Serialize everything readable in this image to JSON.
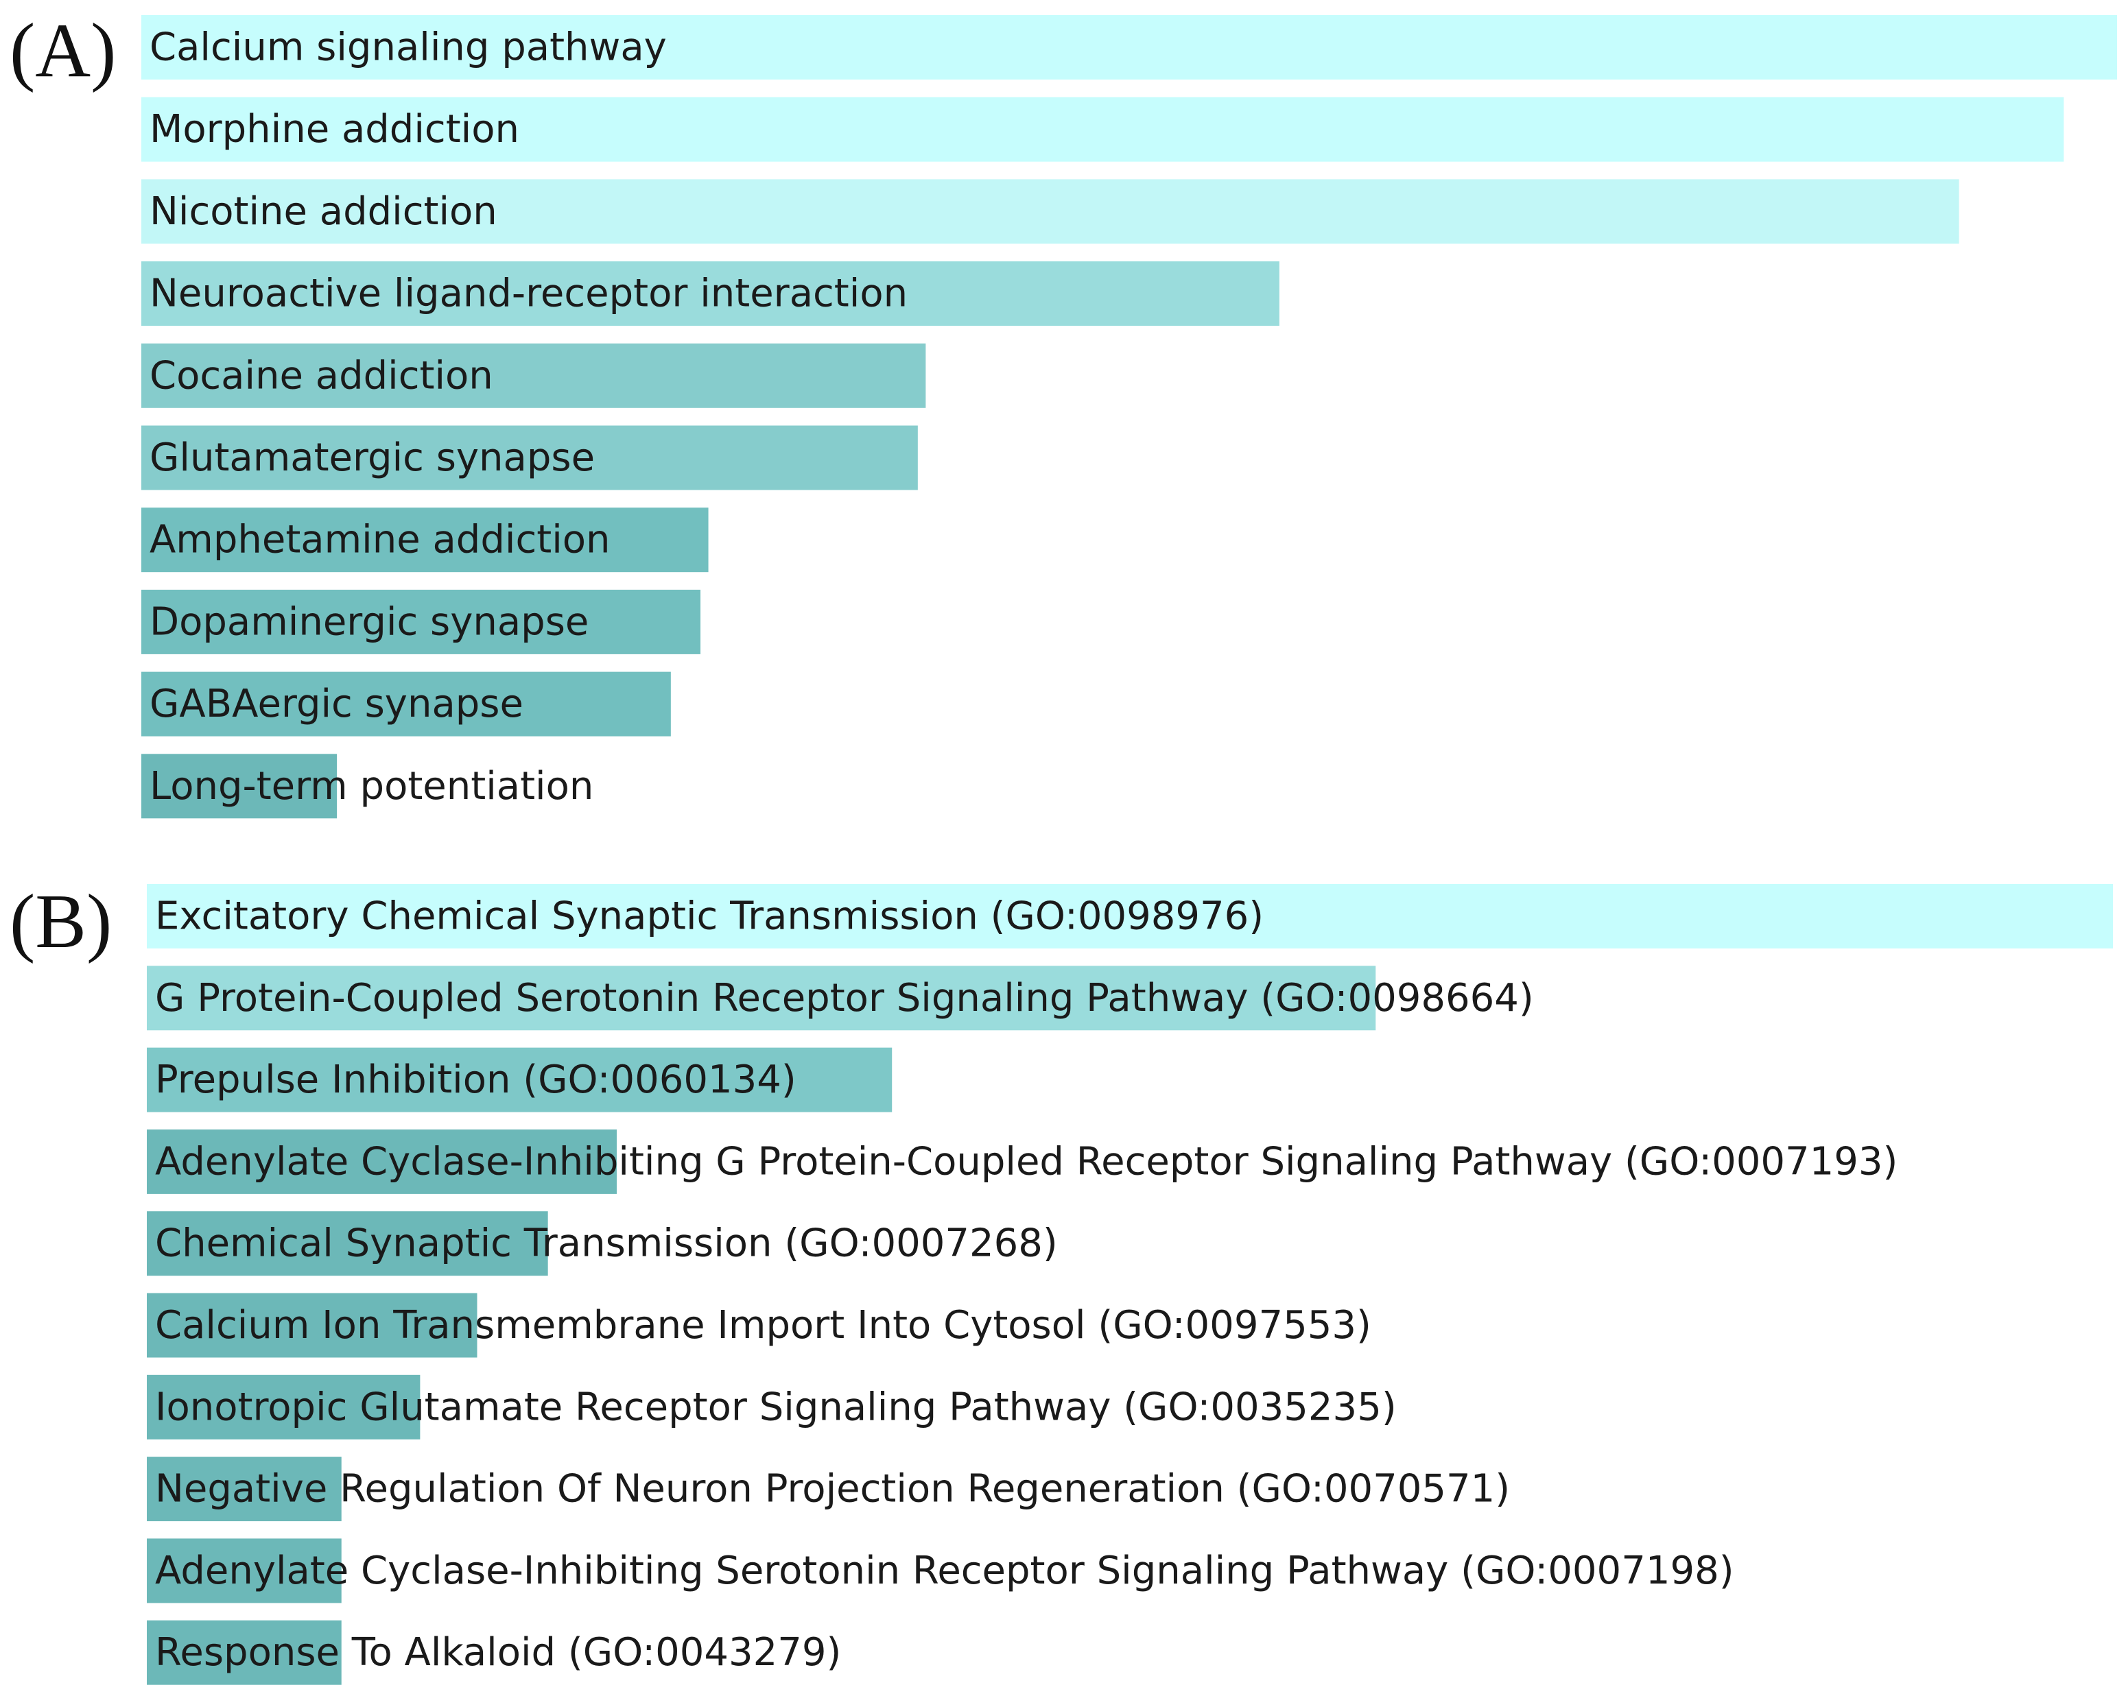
{
  "chart_data": [
    {
      "type": "bar",
      "orientation": "horizontal",
      "panel_label": "(A)",
      "categories": [
        "Calcium signaling pathway",
        "Morphine addiction",
        "Nicotine addiction",
        "Neuroactive ligand-receptor interaction",
        "Cocaine addiction",
        "Glutamatergic synapse",
        "Amphetamine addiction",
        "Dopaminergic synapse",
        "GABAergic synapse",
        "Long-term potentiation"
      ],
      "values": [
        1.0,
        0.973,
        0.92,
        0.576,
        0.397,
        0.393,
        0.287,
        0.283,
        0.268,
        0.099
      ],
      "value_unit": "relative (fraction of longest bar)",
      "bar_colors": [
        "#c6fdfd",
        "#c6fdfd",
        "#c2f7f7",
        "#9adcdc",
        "#86cccc",
        "#86cccc",
        "#72bfbf",
        "#72bfbf",
        "#72bfbf",
        "#6cb8b8"
      ],
      "xlim": [
        0,
        1
      ],
      "grid": false,
      "legend": false
    },
    {
      "type": "bar",
      "orientation": "horizontal",
      "panel_label": "(B)",
      "categories": [
        "Excitatory Chemical Synaptic Transmission (GO:0098976)",
        "G Protein-Coupled Serotonin Receptor Signaling Pathway (GO:0098664)",
        "Prepulse Inhibition (GO:0060134)",
        "Adenylate Cyclase-Inhibiting G Protein-Coupled Receptor Signaling Pathway (GO:0007193)",
        "Chemical Synaptic Transmission (GO:0007268)",
        "Calcium Ion Transmembrane Import Into Cytosol (GO:0097553)",
        "Ionotropic Glutamate Receptor Signaling Pathway (GO:0035235)",
        "Negative Regulation Of Neuron Projection Regeneration (GO:0070571)",
        "Adenylate Cyclase-Inhibiting Serotonin Receptor Signaling Pathway (GO:0007198)",
        "Response To Alkaloid (GO:0043279)"
      ],
      "values": [
        1.0,
        0.625,
        0.379,
        0.239,
        0.204,
        0.168,
        0.139,
        0.099,
        0.099,
        0.099
      ],
      "value_unit": "relative (fraction of longest bar)",
      "bar_colors": [
        "#c6fdfd",
        "#9adcdc",
        "#7ec8c8",
        "#6cb8b8",
        "#6cb8b8",
        "#6cb8b8",
        "#6cb8b8",
        "#6cb8b8",
        "#6cb8b8",
        "#6cb8b8"
      ],
      "xlim": [
        0,
        1
      ],
      "grid": false,
      "legend": false
    }
  ]
}
